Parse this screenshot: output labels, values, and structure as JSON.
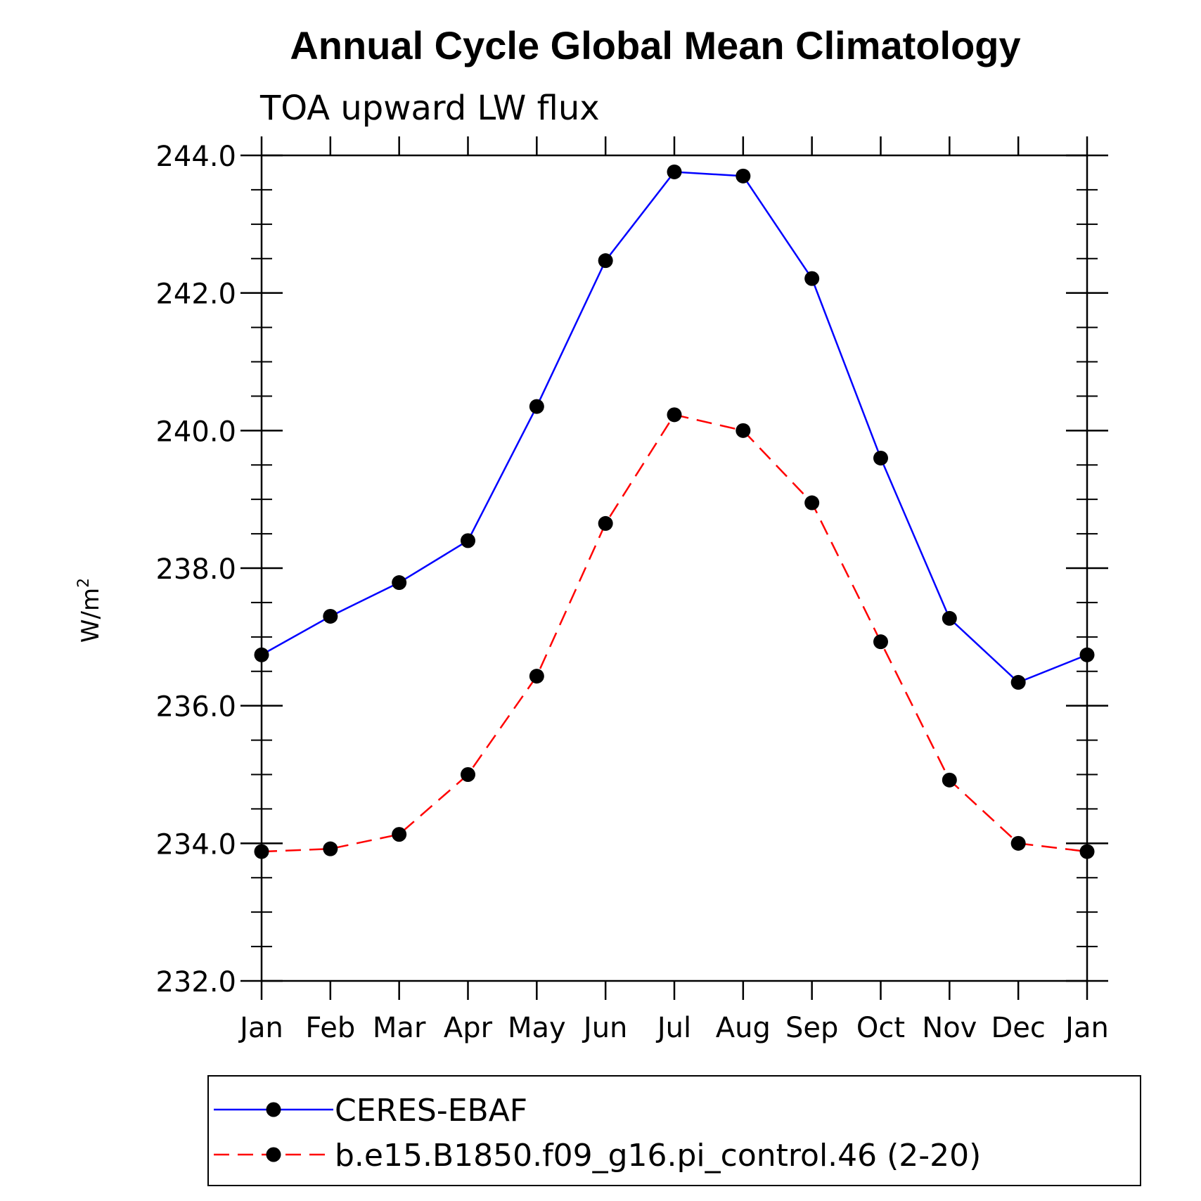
{
  "chart_data": {
    "type": "line",
    "title": "Annual Cycle Global Mean Climatology",
    "subtitle": "TOA upward LW flux",
    "ylabel": "W/m",
    "ylabel_sup": "2",
    "xlabel": "",
    "categories": [
      "Jan",
      "Feb",
      "Mar",
      "Apr",
      "May",
      "Jun",
      "Jul",
      "Aug",
      "Sep",
      "Oct",
      "Nov",
      "Dec",
      "Jan"
    ],
    "ylim": [
      232.0,
      244.0
    ],
    "yticks": [
      "232.0",
      "234.0",
      "236.0",
      "238.0",
      "240.0",
      "242.0",
      "244.0"
    ],
    "ytick_values": [
      232,
      234,
      236,
      238,
      240,
      242,
      244
    ],
    "yminor_step": 0.5,
    "grid": false,
    "legend_position": "bottom",
    "series": [
      {
        "name": "CERES-EBAF",
        "color": "#0000ff",
        "dash": "solid",
        "marker": "filled-circle",
        "values": [
          236.74,
          237.3,
          237.79,
          238.4,
          240.35,
          242.47,
          243.76,
          243.7,
          242.21,
          239.6,
          237.27,
          236.34,
          236.74
        ]
      },
      {
        "name": "b.e15.B1850.f09_g16.pi_control.46 (2-20)",
        "color": "#ff0000",
        "dash": "dashed",
        "marker": "filled-circle",
        "values": [
          233.88,
          233.92,
          234.13,
          235.0,
          236.43,
          238.65,
          240.23,
          240.0,
          238.95,
          236.93,
          234.92,
          234.0,
          233.88
        ]
      }
    ]
  }
}
